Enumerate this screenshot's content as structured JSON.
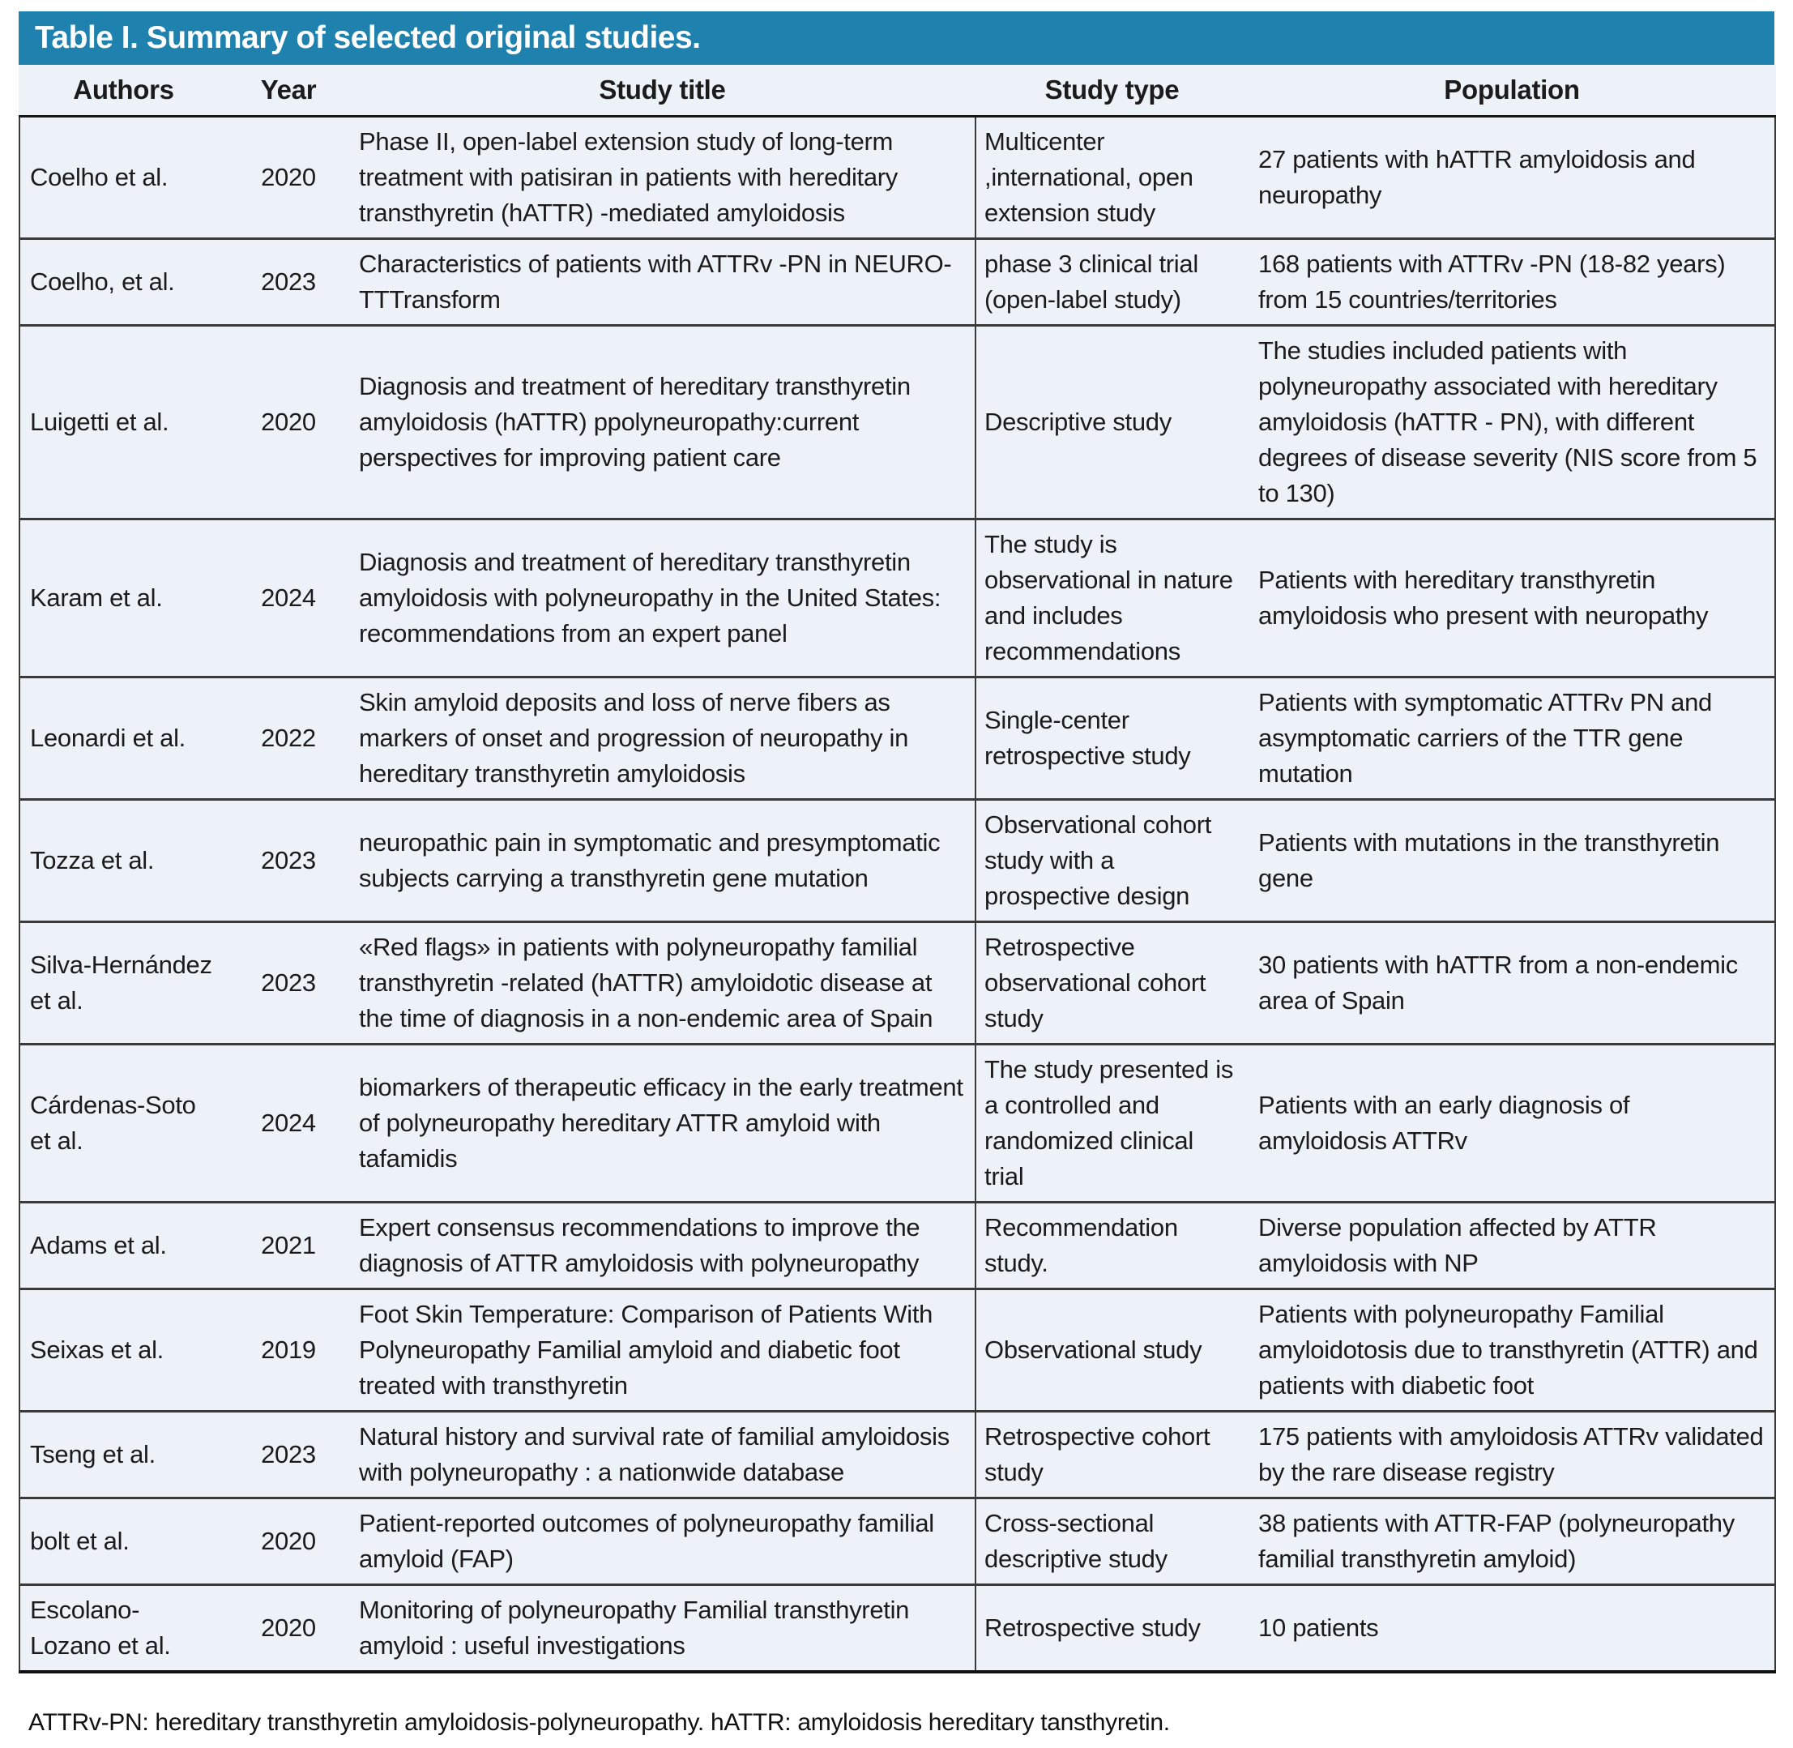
{
  "table": {
    "title": "Table I. Summary of selected original studies.",
    "columns": [
      "Authors",
      "Year",
      "Study title",
      "Study type",
      "Population"
    ],
    "rows": [
      {
        "authors": "Coelho et al.",
        "year": "2020",
        "title": "Phase II, open-label extension study of long-term treatment with patisiran in patients with hereditary transthyretin (hATTR) -mediated amyloidosis",
        "type": "Multicenter ,international, open extension study",
        "population": "27 patients with hATTR amyloidosis and neuropathy"
      },
      {
        "authors": "Coelho, et al.",
        "year": "2023",
        "title": "Characteristics of patients with ATTRv -PN in NEURO- TTTransform",
        "type": "phase 3 clinical trial (open-label study)",
        "population": "168 patients with ATTRv -PN (18-82 years) from 15 countries/territories"
      },
      {
        "authors": "Luigetti et al.",
        "year": "2020",
        "title": "Diagnosis and treatment of hereditary transthyretin amyloidosis (hATTR) ppolyneuropathy:current perspectives for improving patient care",
        "type": "Descriptive study",
        "population": "The studies included patients with polyneuropathy associated with hereditary amyloidosis (hATTR - PN), with different degrees of disease severity (NIS score from 5 to 130)"
      },
      {
        "authors": "Karam et al.",
        "year": "2024",
        "title": "Diagnosis and treatment of hereditary transthyretin amyloidosis with polyneuropathy in the United States: recommendations from an expert panel",
        "type": "The study is observational in nature and includes recommendations",
        "population": "Patients with hereditary transthyretin amyloidosis who present with neuropathy"
      },
      {
        "authors": "Leonardi et al.",
        "year": "2022",
        "title": "Skin amyloid deposits and loss of nerve fibers as markers of onset and progression of neuropathy in hereditary transthyretin amyloidosis",
        "type": "Single-center retrospective study",
        "population": "Patients with symptomatic ATTRv PN and asymptomatic carriers of the TTR gene mutation"
      },
      {
        "authors": "Tozza et al.",
        "year": "2023",
        "title": "neuropathic pain in symptomatic and presymptomatic subjects carrying a transthyretin gene mutation",
        "type": "Observational cohort study with a prospective design",
        "population": "Patients with mutations in the transthyretin gene"
      },
      {
        "authors": "Silva-Hernández et al.",
        "year": "2023",
        "title": "«Red flags» in patients with polyneuropathy familial transthyretin -related (hATTR) amyloidotic disease at the time of diagnosis in a non-endemic area of Spain",
        "type": "Retrospective observational cohort study",
        "population": "30 patients with hATTR from a non-endemic area of Spain"
      },
      {
        "authors": "Cárdenas-Soto et al.",
        "year": "2024",
        "title": "biomarkers of therapeutic efficacy in the early treatment of polyneuropathy hereditary ATTR amyloid with tafamidis",
        "type": "The study presented is a controlled and randomized clinical trial",
        "population": "Patients with an early diagnosis of amyloidosis ATTRv"
      },
      {
        "authors": "Adams et al.",
        "year": "2021",
        "title": "Expert consensus recommendations to improve the diagnosis of ATTR amyloidosis with polyneuropathy",
        "type": "Recommendation study.",
        "population": "Diverse population affected by ATTR amyloidosis with NP"
      },
      {
        "authors": "Seixas et al.",
        "year": "2019",
        "title": "Foot Skin Temperature: Comparison of Patients With Polyneuropathy Familial amyloid and diabetic foot treated with transthyretin",
        "type": "Observational study",
        "population": "Patients with polyneuropathy Familial amyloidotosis due to transthyretin (ATTR) and patients with diabetic foot"
      },
      {
        "authors": "Tseng et al.",
        "year": "2023",
        "title": "Natural history and survival rate of familial amyloidosis with polyneuropathy : a nationwide database",
        "type": "Retrospective cohort study",
        "population": "175 patients with amyloidosis ATTRv validated by the rare disease registry"
      },
      {
        "authors": "bolt et al.",
        "year": "2020",
        "title": "Patient-reported outcomes of polyneuropathy familial amyloid (FAP)",
        "type": "Cross-sectional descriptive study",
        "population": "38 patients with ATTR-FAP (polyneuropathy familial transthyretin amyloid)"
      },
      {
        "authors": "Escolano-Lozano et al.",
        "year": "2020",
        "title": "Monitoring of polyneuropathy Familial transthyretin amyloid : useful investigations",
        "type": "Retrospective study",
        "population": "10 patients"
      }
    ],
    "footnote": "ATTRv-PN: hereditary transthyretin amyloidosis-polyneuropathy. hATTR: amyloidosis hereditary tansthyretin.",
    "colors": {
      "title_bar_bg": "#1f81ad",
      "title_text": "#ffffff",
      "body_bg": "#edf1f8",
      "divider": "#3a3a3a"
    }
  }
}
